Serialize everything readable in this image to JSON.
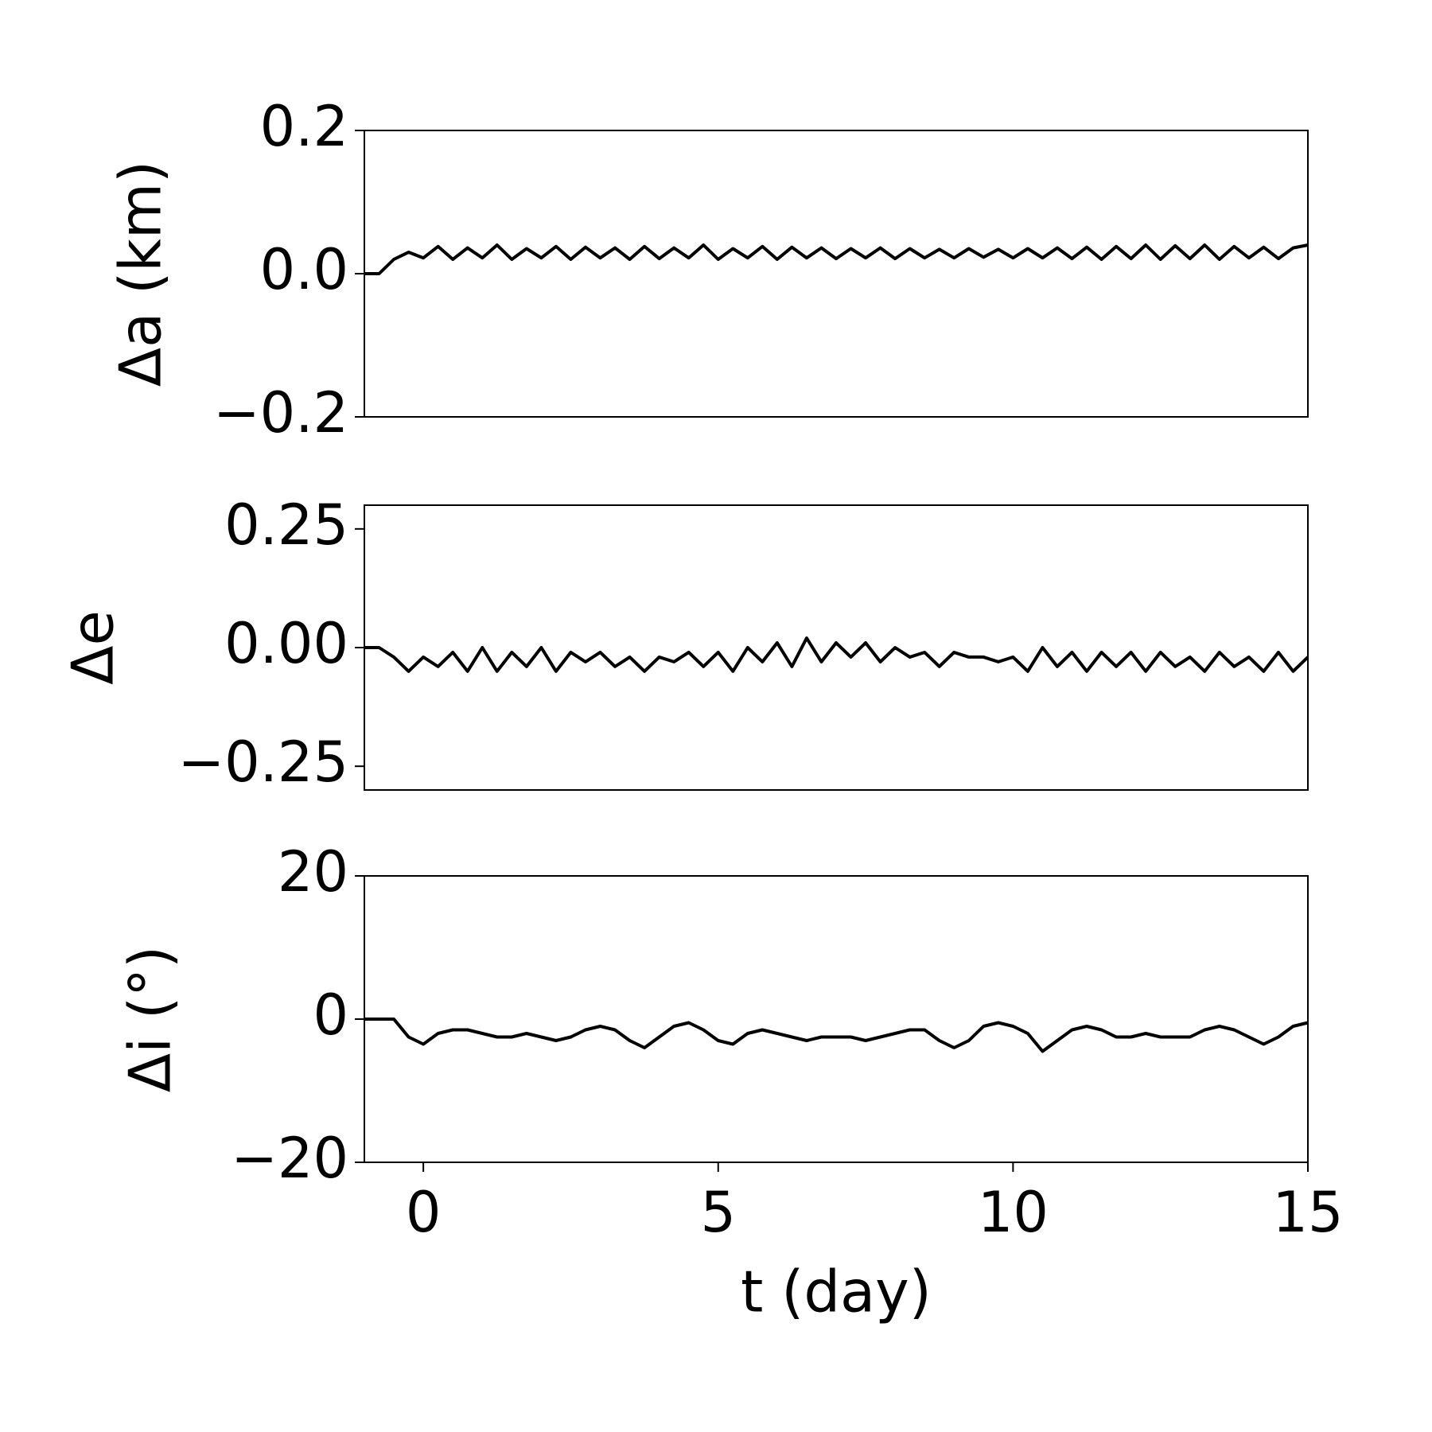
{
  "chart_data": [
    {
      "type": "line",
      "ylabel": "Δa (km)",
      "color": "#000000",
      "xlim": [
        -1,
        15
      ],
      "ylim": [
        -0.2,
        0.2
      ],
      "yticks": [
        {
          "value": -0.2,
          "label": "−0.2"
        },
        {
          "value": 0,
          "label": "0.0"
        },
        0.2
      ],
      "x": [
        -1,
        -0.75,
        -0.5,
        -0.25,
        0,
        0.25,
        0.5,
        0.75,
        1,
        1.25,
        1.5,
        1.75,
        2,
        2.25,
        2.5,
        2.75,
        3,
        3.25,
        3.5,
        3.75,
        4,
        4.25,
        4.5,
        4.75,
        5,
        5.25,
        5.5,
        5.75,
        6,
        6.25,
        6.5,
        6.75,
        7,
        7.25,
        7.5,
        7.75,
        8,
        8.25,
        8.5,
        8.75,
        9,
        9.25,
        9.5,
        9.75,
        10,
        10.25,
        10.5,
        10.75,
        11,
        11.25,
        11.5,
        11.75,
        12,
        12.25,
        12.5,
        12.75,
        13,
        13.25,
        13.5,
        13.75,
        14,
        14.25,
        14.5,
        14.75,
        15
      ],
      "values": [
        0,
        0,
        0.02,
        0.03,
        0.022,
        0.038,
        0.02,
        0.036,
        0.022,
        0.04,
        0.02,
        0.035,
        0.022,
        0.038,
        0.02,
        0.037,
        0.022,
        0.036,
        0.02,
        0.038,
        0.021,
        0.036,
        0.022,
        0.04,
        0.02,
        0.035,
        0.022,
        0.038,
        0.02,
        0.037,
        0.022,
        0.036,
        0.021,
        0.035,
        0.022,
        0.036,
        0.021,
        0.035,
        0.022,
        0.034,
        0.022,
        0.035,
        0.023,
        0.034,
        0.022,
        0.035,
        0.022,
        0.036,
        0.021,
        0.037,
        0.02,
        0.038,
        0.021,
        0.04,
        0.02,
        0.039,
        0.021,
        0.04,
        0.02,
        0.038,
        0.022,
        0.037,
        0.021,
        0.036,
        0.04
      ]
    },
    {
      "type": "line",
      "ylabel": "Δe",
      "color": "#000000",
      "xlim": [
        -1,
        15
      ],
      "ylim": [
        -0.3,
        0.3
      ],
      "yticks": [
        {
          "value": -0.25,
          "label": "−0.25"
        },
        {
          "value": 0,
          "label": "0.00"
        },
        0.25
      ],
      "x": [
        -1,
        -0.75,
        -0.5,
        -0.25,
        0,
        0.25,
        0.5,
        0.75,
        1,
        1.25,
        1.5,
        1.75,
        2,
        2.25,
        2.5,
        2.75,
        3,
        3.25,
        3.5,
        3.75,
        4,
        4.25,
        4.5,
        4.75,
        5,
        5.25,
        5.5,
        5.75,
        6,
        6.25,
        6.5,
        6.75,
        7,
        7.25,
        7.5,
        7.75,
        8,
        8.25,
        8.5,
        8.75,
        9,
        9.25,
        9.5,
        9.75,
        10,
        10.25,
        10.5,
        10.75,
        11,
        11.25,
        11.5,
        11.75,
        12,
        12.25,
        12.5,
        12.75,
        13,
        13.25,
        13.5,
        13.75,
        14,
        14.25,
        14.5,
        14.75,
        15
      ],
      "values": [
        0,
        0,
        -0.02,
        -0.05,
        -0.02,
        -0.04,
        -0.01,
        -0.05,
        0.0,
        -0.05,
        -0.01,
        -0.04,
        0.0,
        -0.05,
        -0.01,
        -0.03,
        -0.01,
        -0.04,
        -0.02,
        -0.05,
        -0.02,
        -0.03,
        -0.01,
        -0.04,
        -0.01,
        -0.05,
        0.0,
        -0.03,
        0.01,
        -0.04,
        0.02,
        -0.03,
        0.01,
        -0.02,
        0.01,
        -0.03,
        0.0,
        -0.02,
        -0.01,
        -0.04,
        -0.01,
        -0.02,
        -0.02,
        -0.03,
        -0.02,
        -0.05,
        0.0,
        -0.04,
        -0.01,
        -0.05,
        -0.01,
        -0.04,
        -0.01,
        -0.05,
        -0.01,
        -0.04,
        -0.02,
        -0.05,
        -0.01,
        -0.04,
        -0.02,
        -0.05,
        -0.01,
        -0.05,
        -0.02
      ]
    },
    {
      "type": "line",
      "ylabel": "Δi (°)",
      "xlabel": "t (day)",
      "color": "#000000",
      "xlim": [
        -1,
        15
      ],
      "ylim": [
        -20,
        20
      ],
      "xticks": [
        0,
        5,
        10,
        15
      ],
      "yticks": [
        {
          "value": -20,
          "label": "−20"
        },
        0,
        20
      ],
      "x": [
        -1,
        -0.75,
        -0.5,
        -0.25,
        0,
        0.25,
        0.5,
        0.75,
        1,
        1.25,
        1.5,
        1.75,
        2,
        2.25,
        2.5,
        2.75,
        3,
        3.25,
        3.5,
        3.75,
        4,
        4.25,
        4.5,
        4.75,
        5,
        5.25,
        5.5,
        5.75,
        6,
        6.25,
        6.5,
        6.75,
        7,
        7.25,
        7.5,
        7.75,
        8,
        8.25,
        8.5,
        8.75,
        9,
        9.25,
        9.5,
        9.75,
        10,
        10.25,
        10.5,
        10.75,
        11,
        11.25,
        11.5,
        11.75,
        12,
        12.25,
        12.5,
        12.75,
        13,
        13.25,
        13.5,
        13.75,
        14,
        14.25,
        14.5,
        14.75,
        15
      ],
      "values": [
        0,
        0,
        0,
        -2.5,
        -3.5,
        -2,
        -1.5,
        -1.5,
        -2,
        -2.5,
        -2.5,
        -2,
        -2.5,
        -3,
        -2.5,
        -1.5,
        -1,
        -1.5,
        -3,
        -4,
        -2.5,
        -1,
        -0.5,
        -1.5,
        -3,
        -3.5,
        -2,
        -1.5,
        -2,
        -2.5,
        -3,
        -2.5,
        -2.5,
        -2.5,
        -3,
        -2.5,
        -2,
        -1.5,
        -1.5,
        -3,
        -4,
        -3,
        -1,
        -0.5,
        -1,
        -2,
        -4.5,
        -3,
        -1.5,
        -1,
        -1.5,
        -2.5,
        -2.5,
        -2,
        -2.5,
        -2.5,
        -2.5,
        -1.5,
        -1,
        -1.5,
        -2.5,
        -3.5,
        -2.5,
        -1,
        -0.5
      ]
    }
  ]
}
